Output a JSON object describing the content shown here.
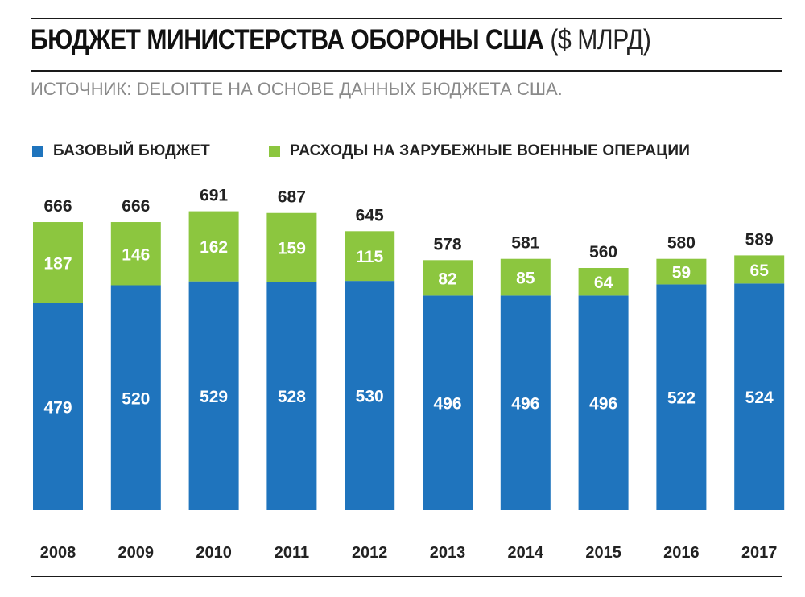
{
  "header": {
    "title": "БЮДЖЕТ МИНИСТЕРСТВА ОБОРОНЫ США",
    "title_unit": "($ МЛРД)",
    "source": "ИСТОЧНИК: DELOITTE НА ОСНОВЕ ДАННЫХ БЮДЖЕТА США."
  },
  "colors": {
    "base": "#1f74bd",
    "overseas": "#8cc63f",
    "text": "#222222",
    "bar_label": "#ffffff"
  },
  "chart_data": {
    "type": "bar",
    "stacked": true,
    "categories": [
      "2008",
      "2009",
      "2010",
      "2011",
      "2012",
      "2013",
      "2014",
      "2015",
      "2016",
      "2017"
    ],
    "series": [
      {
        "name": "БАЗОВЫЙ БЮДЖЕТ",
        "values": [
          479,
          520,
          529,
          528,
          530,
          496,
          496,
          496,
          522,
          524
        ]
      },
      {
        "name": "РАСХОДЫ НА ЗАРУБЕЖНЫЕ ВОЕННЫЕ ОПЕРАЦИИ",
        "values": [
          187,
          146,
          162,
          159,
          115,
          82,
          85,
          64,
          59,
          65
        ]
      }
    ],
    "totals": [
      666,
      666,
      691,
      687,
      645,
      578,
      581,
      560,
      580,
      589
    ],
    "ylim": [
      0,
      720
    ],
    "legend_position": "top-left",
    "grid": false
  }
}
